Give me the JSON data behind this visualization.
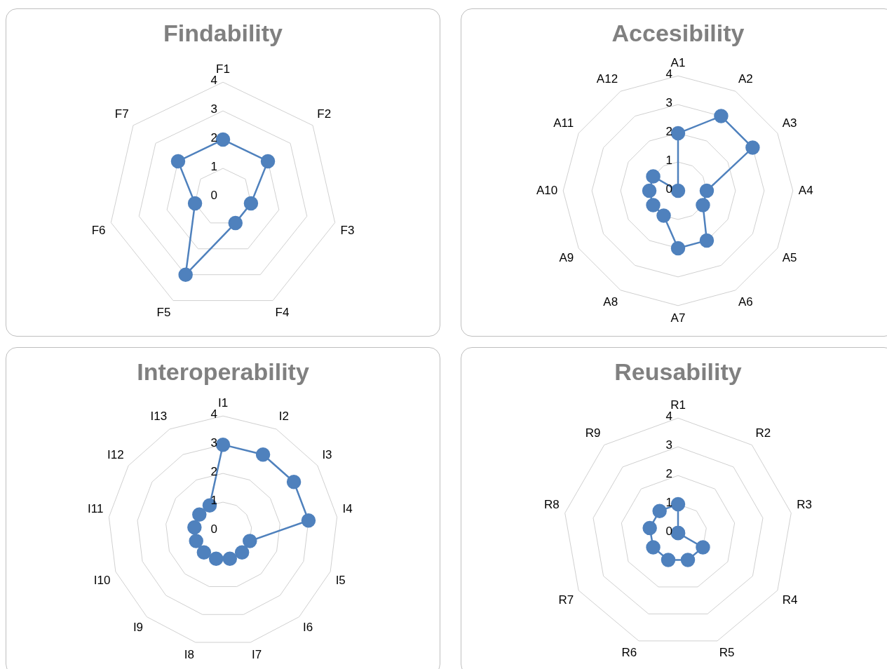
{
  "chart_data": [
    {
      "type": "radar",
      "title": "Findability",
      "categories": [
        "F1",
        "F2",
        "F3",
        "F4",
        "F5",
        "F6",
        "F7"
      ],
      "series": [
        {
          "color": "#4f81bd",
          "values": [
            2,
            2,
            1,
            1,
            3,
            1,
            2
          ]
        }
      ],
      "ylim": [
        0,
        4
      ],
      "yticks": [
        0,
        1,
        2,
        3,
        4
      ],
      "grid": true,
      "marker": "circle"
    },
    {
      "type": "radar",
      "title": "Accesibility",
      "categories": [
        "A1",
        "A2",
        "A3",
        "A4",
        "A5",
        "A6",
        "A7",
        "A8",
        "A9",
        "A10",
        "A11",
        "A12"
      ],
      "series": [
        {
          "color": "#4f81bd",
          "values": [
            2,
            3,
            3,
            1,
            1,
            2,
            2,
            1,
            1,
            1,
            1,
            0
          ]
        }
      ],
      "ylim": [
        0,
        4
      ],
      "yticks": [
        0,
        1,
        2,
        3,
        4
      ],
      "grid": true,
      "marker": "circle"
    },
    {
      "type": "radar",
      "title": "Interoperability",
      "categories": [
        "I1",
        "I2",
        "I3",
        "I4",
        "I5",
        "I6",
        "I7",
        "I8",
        "I9",
        "I10",
        "I11",
        "I12",
        "I13"
      ],
      "series": [
        {
          "color": "#4f81bd",
          "values": [
            3,
            3,
            3,
            3,
            1,
            1,
            1,
            1,
            1,
            1,
            1,
            1,
            1
          ]
        }
      ],
      "ylim": [
        0,
        4
      ],
      "yticks": [
        0,
        1,
        2,
        3,
        4
      ],
      "grid": true,
      "marker": "circle"
    },
    {
      "type": "radar",
      "title": "Reusability",
      "categories": [
        "R1",
        "R2",
        "R3",
        "R4",
        "R5",
        "R6",
        "R7",
        "R8",
        "R9"
      ],
      "series": [
        {
          "color": "#4f81bd",
          "values": [
            1,
            0,
            0,
            1,
            1,
            1,
            1,
            1,
            1
          ]
        }
      ],
      "ylim": [
        0,
        4
      ],
      "yticks": [
        0,
        1,
        2,
        3,
        4
      ],
      "grid": true,
      "marker": "circle"
    }
  ]
}
